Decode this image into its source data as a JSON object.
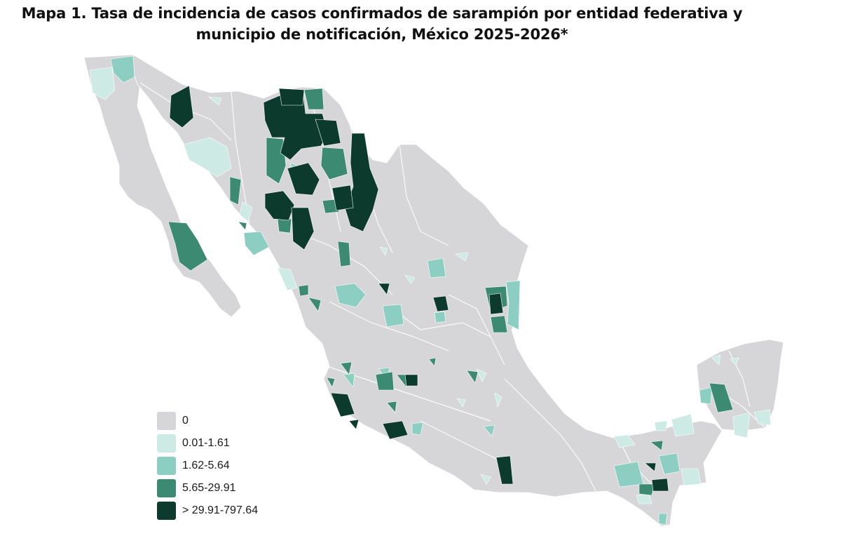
{
  "title": {
    "line1": "Mapa 1. Tasa de incidencia de casos confirmados de sarampión por entidad federativa y",
    "line2": "municipio de  notificación, México 2025-2026*"
  },
  "legend": [
    {
      "label": "0",
      "color": "#d6d5d7"
    },
    {
      "label": "0.01-1.61",
      "color": "#cdebe4"
    },
    {
      "label": "1.62-5.64",
      "color": "#8ccfc2"
    },
    {
      "label": "5.65-29.91",
      "color": "#3d8a72"
    },
    {
      "label": "> 29.91-797.64",
      "color": "#0c3a2c"
    }
  ],
  "colors": {
    "base": "#d6d5d7",
    "border": "#ffffff"
  }
}
